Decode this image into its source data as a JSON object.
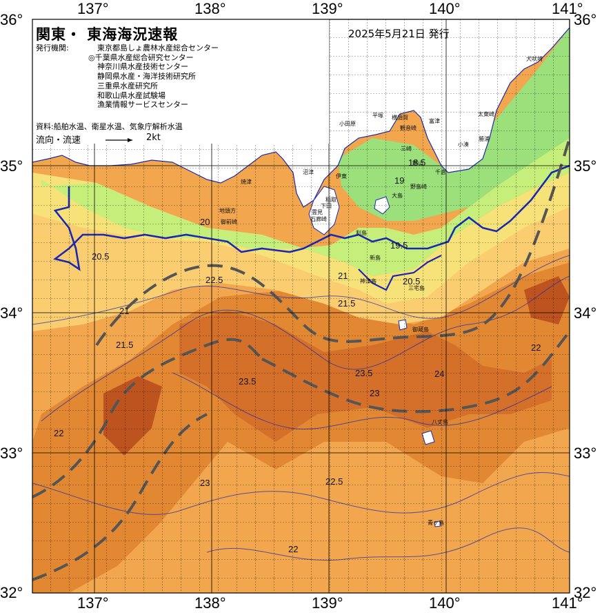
{
  "title": "関東・ 東海海況速報",
  "issue_date": "2025年5月21日 発行",
  "issuer_label": "発行機関:",
  "issuers": [
    "東京都島しょ農林水産総合センター",
    "◎千葉県水産総合研究センター",
    "神奈川県水産技術センター",
    "静岡県水産・海洋技術研究所",
    "三重県水産研究所",
    "和歌山県水産試験場",
    "漁業情報サービスセンター"
  ],
  "source_text": "資料:船舶水温、衛星水温、気象庁解析水温",
  "flow_label": "流向・流速",
  "flow_scale": "2kt",
  "lon_ticks": [
    "137°",
    "138°",
    "139°",
    "140°",
    "141°"
  ],
  "lat_ticks_left": [
    "36°",
    "35°",
    "34°",
    "33°",
    "32°"
  ],
  "lat_ticks_right": [
    "36°",
    "35°",
    "34°",
    "33°",
    "32°"
  ],
  "place_names": [
    "犬吠埼",
    "太東崎",
    "勝浦",
    "小湊",
    "千倉",
    "野島崎",
    "館山",
    "富津",
    "観音崎",
    "横須賀",
    "平塚",
    "三崎",
    "小田原",
    "焼津",
    "御前崎",
    "地頭方",
    "沼津",
    "伊東",
    "稲取",
    "下田",
    "石廊崎",
    "雲見",
    "新島",
    "神津島",
    "三宅島",
    "御蔵島",
    "八丈島",
    "青ヶ島",
    "利島",
    "大島"
  ],
  "contour_labels": [
    "20.5",
    "20",
    "19",
    "18.5",
    "19.5",
    "21",
    "21.5",
    "22",
    "22.5",
    "23",
    "23.5",
    "24",
    "20.5",
    "21.5",
    "22",
    "23",
    "22.5",
    "23.5",
    "21",
    "22"
  ],
  "colors": {
    "land": "#ffffff",
    "temp_19": "#9be07a",
    "temp_20": "#c6ee7a",
    "temp_21": "#f7e27a",
    "temp_215": "#f9cd70",
    "temp_22": "#f2a64e",
    "temp_23": "#e28833",
    "temp_235": "#d4702a",
    "temp_24": "#bd5420",
    "isotherm": "#1a2ab0",
    "front_line": "#555555",
    "grid": "#000000"
  }
}
